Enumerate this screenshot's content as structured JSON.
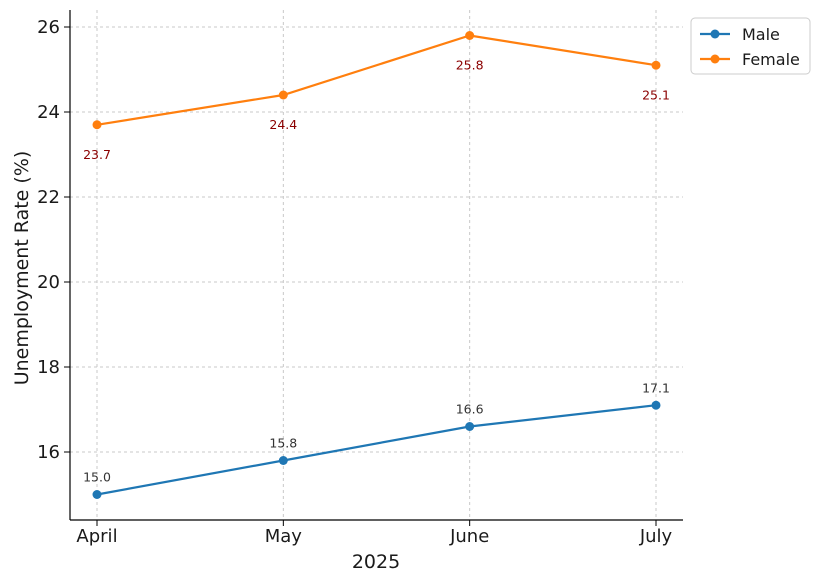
{
  "chart_data": {
    "type": "line",
    "title": "",
    "xlabel": "2025",
    "ylabel": "Unemployment Rate (%)",
    "categories": [
      "April",
      "May",
      "June",
      "July"
    ],
    "yticks": [
      16,
      18,
      20,
      22,
      24,
      26
    ],
    "ylim": [
      14.4,
      26.4
    ],
    "grid": true,
    "legend_position": "top-right",
    "series": [
      {
        "name": "Male",
        "color": "#1f77b4",
        "label_color": "#333333",
        "label_position": "above",
        "values": [
          15.0,
          15.8,
          16.6,
          17.1
        ],
        "labels": [
          "15.0",
          "15.8",
          "16.6",
          "17.1"
        ]
      },
      {
        "name": "Female",
        "color": "#ff7f0e",
        "label_color": "#8b0000",
        "label_position": "below",
        "values": [
          23.7,
          24.4,
          25.8,
          25.1
        ],
        "labels": [
          "23.7",
          "24.4",
          "25.8",
          "25.1"
        ]
      }
    ]
  }
}
